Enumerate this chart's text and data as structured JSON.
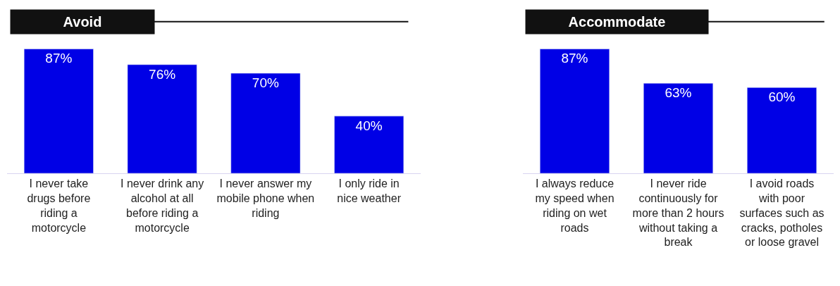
{
  "chart_data": [
    {
      "type": "bar",
      "title": "Avoid",
      "categories": [
        "I never take drugs before riding a motorcycle",
        "I never drink any alcohol at all before riding a motorcycle",
        "I never answer my mobile phone when riding",
        "I only ride in nice weather"
      ],
      "values": [
        87,
        76,
        70,
        40
      ],
      "value_labels": [
        "87%",
        "76%",
        "70%",
        "40%"
      ],
      "color": "#0000e6"
    },
    {
      "type": "bar",
      "title": "Accommodate",
      "categories": [
        "I always reduce my speed when riding on wet roads",
        "I never ride continuously for more than 2 hours without taking a break",
        "I avoid roads with poor surfaces such as cracks, potholes or loose gravel"
      ],
      "values": [
        87,
        63,
        60
      ],
      "value_labels": [
        "87%",
        "63%",
        "60%"
      ],
      "color": "#0000e6"
    }
  ]
}
